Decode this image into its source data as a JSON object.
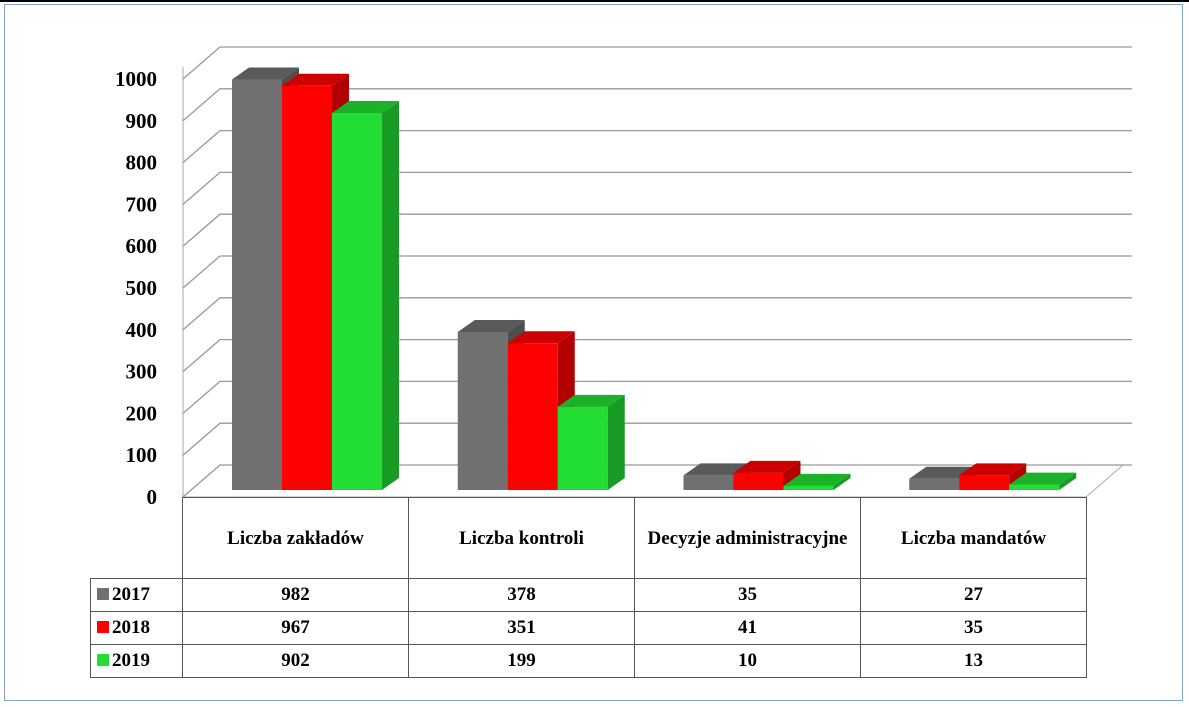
{
  "chart_data": {
    "type": "bar3d",
    "categories": [
      "Liczba zakładów",
      "Liczba kontroli",
      "Decyzje administracyjne",
      "Liczba mandatów"
    ],
    "series": [
      {
        "name": "2017",
        "color": "#707070",
        "values": [
          982,
          378,
          35,
          27
        ]
      },
      {
        "name": "2018",
        "color": "#ff0000",
        "values": [
          967,
          351,
          41,
          35
        ]
      },
      {
        "name": "2019",
        "color": "#22dd33",
        "values": [
          902,
          199,
          10,
          13
        ]
      }
    ],
    "ylim": [
      0,
      1000
    ],
    "yticks": [
      0,
      100,
      200,
      300,
      400,
      500,
      600,
      700,
      800,
      900,
      1000
    ],
    "grid": true
  }
}
